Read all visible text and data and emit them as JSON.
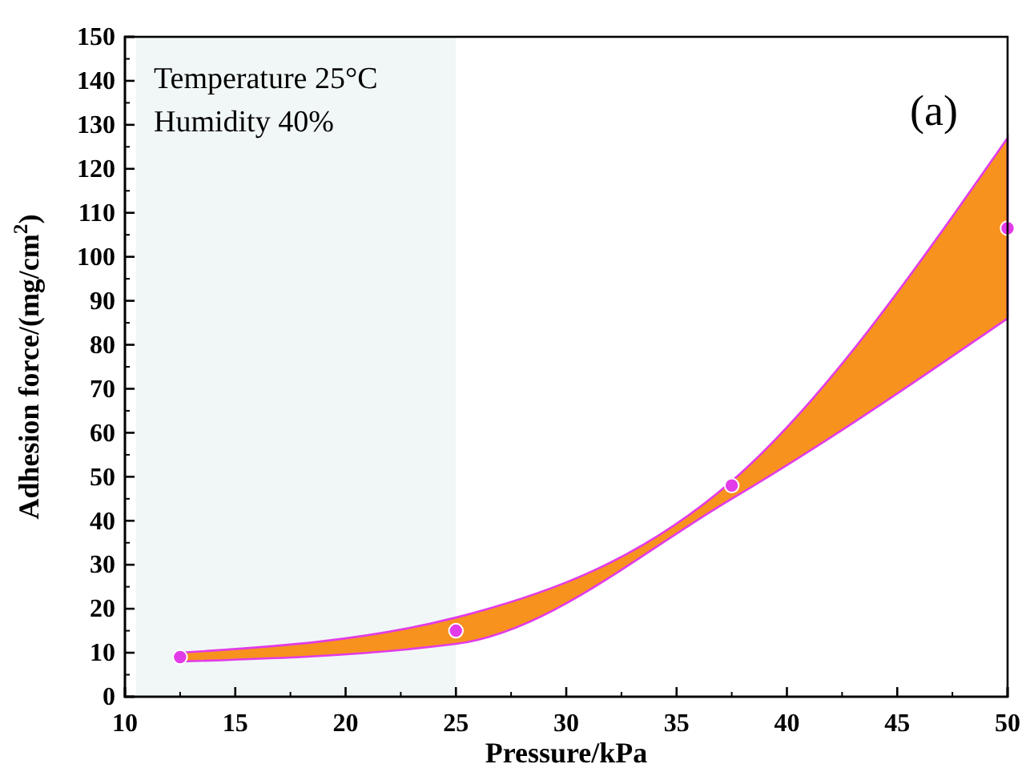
{
  "chart_data": {
    "type": "scatter",
    "xlabel": "Pressure/kPa",
    "ylabel": "Adhesion force/(mg/cm$^{2}$)",
    "xlim": [
      10,
      50
    ],
    "ylim": [
      0,
      150
    ],
    "xticks": [
      10,
      15,
      20,
      25,
      30,
      35,
      40,
      45,
      50
    ],
    "yticks": [
      0,
      10,
      20,
      30,
      40,
      50,
      60,
      70,
      80,
      90,
      100,
      110,
      120,
      130,
      140,
      150
    ],
    "series": [
      {
        "color": "#e23be8",
        "x": [
          12.5,
          25,
          37.5,
          50
        ],
        "values": [
          9,
          15,
          48,
          106.5
        ],
        "lower": [
          8,
          12,
          45,
          86
        ],
        "upper": [
          10,
          18,
          49,
          127
        ]
      }
    ],
    "marker": "circle",
    "grid": false,
    "bands": [
      {
        "axis": "x",
        "from": 10.5,
        "to": 25,
        "color": "#f1f7f6"
      }
    ],
    "annotations": [
      "Temperature  25°C",
      "Humidity  40%",
      "(a)"
    ]
  }
}
